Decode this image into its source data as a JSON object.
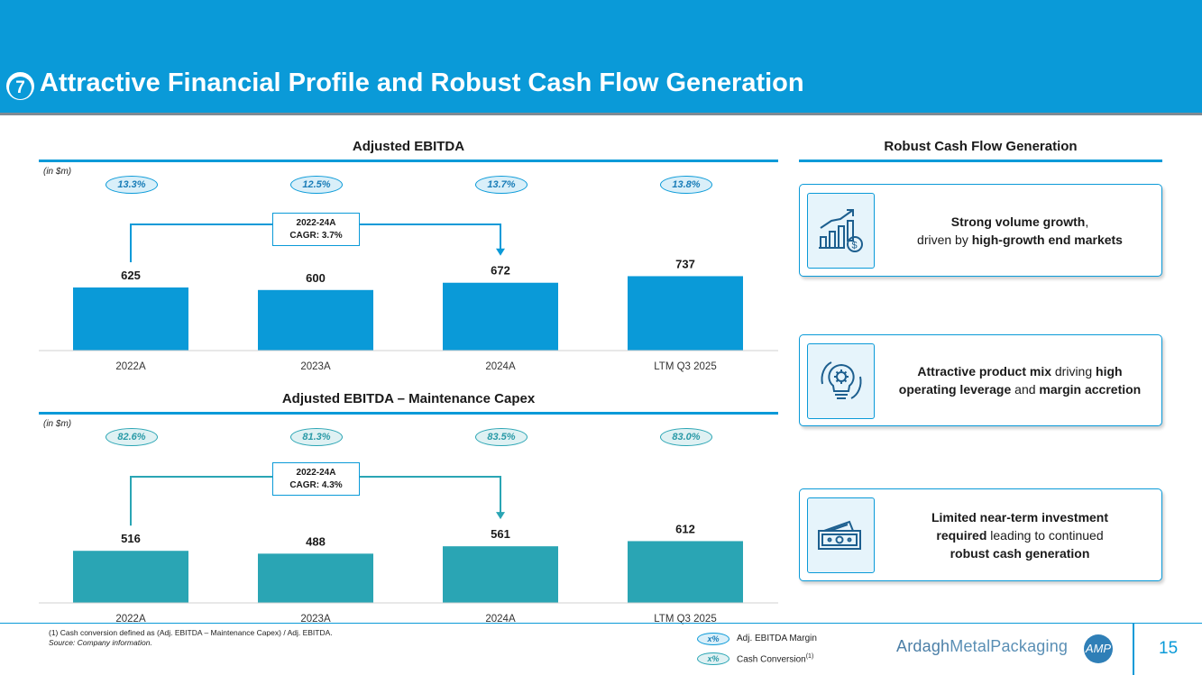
{
  "header": {
    "section_number": "7",
    "title": "Attractive Financial Profile and Robust Cash Flow Generation"
  },
  "chart_data": [
    {
      "type": "bar",
      "title": "Adjusted EBITDA",
      "unit_label": "(in $m)",
      "categories": [
        "2022A",
        "2023A",
        "2024A",
        "LTM Q3 2025"
      ],
      "values": [
        625,
        600,
        672,
        737
      ],
      "value_labels": [
        "625",
        "600",
        "672",
        "737"
      ],
      "annotations": [
        "13.3%",
        "12.5%",
        "13.7%",
        "13.8%"
      ],
      "annotation_meaning": "Adj. EBITDA Margin",
      "cagr_label": [
        "2022-24A",
        "CAGR: 3.7%"
      ],
      "color": "#0a9ad8"
    },
    {
      "type": "bar",
      "title": "Adjusted EBITDA – Maintenance Capex",
      "unit_label": "(in $m)",
      "categories": [
        "2022A",
        "2023A",
        "2024A",
        "LTM Q3 2025"
      ],
      "values": [
        516,
        488,
        561,
        612
      ],
      "value_labels": [
        "516",
        "488",
        "561",
        "612"
      ],
      "annotations": [
        "82.6%",
        "81.3%",
        "83.5%",
        "83.0%"
      ],
      "annotation_meaning": "Cash Conversion",
      "cagr_label": [
        "2022-24A",
        "CAGR: 4.3%"
      ],
      "color": "#2aa5b4"
    }
  ],
  "cashflow": {
    "title": "Robust Cash Flow Generation",
    "cards": [
      {
        "icon": "growth-chart-dollar-icon",
        "line1_bold": "Strong volume growth",
        "line1_rest": ",",
        "line2_pre": "driven by ",
        "line2_bold": "high-growth end markets"
      },
      {
        "icon": "lightbulb-gear-icon",
        "line1_bold_a": "Attractive product mix",
        "line1_mid": " driving ",
        "line1_bold_b": "high",
        "line2_bold_a": "operating leverage",
        "line2_mid": " and ",
        "line2_bold_b": "margin accretion"
      },
      {
        "icon": "banknote-icon",
        "line1_bold": "Limited near-term investment",
        "line2_bold": "required",
        "line2_rest": " leading to continued",
        "line3_bold": "robust cash generation"
      }
    ]
  },
  "footer": {
    "footnote_1": "(1)    Cash conversion defined as (Adj. EBITDA – Maintenance Capex) / Adj. EBITDA.",
    "source": "Source: Company information.",
    "legend": [
      {
        "symbol": "x%",
        "label": "Adj. EBITDA Margin",
        "sup": ""
      },
      {
        "symbol": "x%",
        "label": "Cash Conversion",
        "sup": "(1)"
      }
    ],
    "logo_part1": "Ardagh",
    "logo_part2": "MetalPackaging",
    "logo_mark": "AMP",
    "page_number": "15"
  },
  "colors": {
    "brand_blue": "#0a9ad8",
    "teal": "#2aa5b4"
  }
}
